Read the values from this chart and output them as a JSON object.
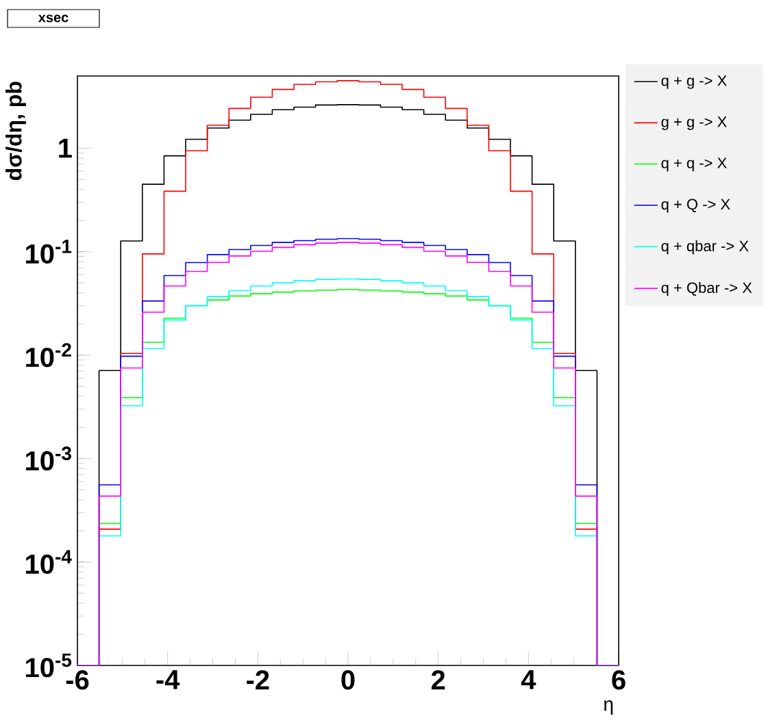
{
  "chart_data": {
    "type": "histogram",
    "title": "xsec",
    "xlabel": "η",
    "ylabel": "dσ/dη, pb",
    "bins": [
      -6,
      -5.52,
      -5.04,
      -4.56,
      -4.08,
      -3.6,
      -3.12,
      -2.64,
      -2.16,
      -1.68,
      -1.2,
      -0.72,
      -0.24,
      0.24,
      0.72,
      1.2,
      1.68,
      2.16,
      2.64,
      3.12,
      3.6,
      4.08,
      4.56,
      5.04,
      5.52,
      6
    ],
    "series": [
      {
        "name": "q + g -> X",
        "color": "#000000",
        "values": [
          null,
          0.0071,
          0.127,
          0.449,
          0.845,
          1.22,
          1.57,
          1.87,
          2.13,
          2.36,
          2.5,
          2.62,
          2.64,
          2.62,
          2.5,
          2.36,
          2.13,
          1.87,
          1.57,
          1.22,
          0.845,
          0.449,
          0.127,
          0.0071,
          null
        ]
      },
      {
        "name": "g + g -> X",
        "color": "#ff0000",
        "values": [
          null,
          0.000208,
          0.0104,
          0.0953,
          0.384,
          0.946,
          1.67,
          2.43,
          3.12,
          3.71,
          4.15,
          4.39,
          4.5,
          4.39,
          4.15,
          3.71,
          3.12,
          2.43,
          1.67,
          0.946,
          0.384,
          0.0953,
          0.0104,
          0.000208,
          null
        ]
      },
      {
        "name": "q + q -> X",
        "color": "#00ff00",
        "values": [
          null,
          0.000236,
          0.00389,
          0.0133,
          0.0228,
          0.0301,
          0.0342,
          0.0373,
          0.0392,
          0.0407,
          0.0417,
          0.0425,
          0.0432,
          0.0425,
          0.0417,
          0.0407,
          0.0392,
          0.0373,
          0.0342,
          0.0301,
          0.0228,
          0.0133,
          0.00389,
          0.000236,
          null
        ]
      },
      {
        "name": "q + Q -> X",
        "color": "#0000ff",
        "values": [
          null,
          0.000557,
          0.00975,
          0.0334,
          0.0588,
          0.0786,
          0.0938,
          0.105,
          0.115,
          0.123,
          0.128,
          0.132,
          0.134,
          0.132,
          0.128,
          0.123,
          0.115,
          0.105,
          0.0938,
          0.0786,
          0.0588,
          0.0334,
          0.00975,
          0.000557,
          null
        ]
      },
      {
        "name": "q + qbar -> X",
        "color": "#00ffff",
        "values": [
          null,
          0.000179,
          0.00324,
          0.0116,
          0.0219,
          0.03,
          0.0369,
          0.0421,
          0.0466,
          0.05,
          0.0524,
          0.054,
          0.0545,
          0.054,
          0.0524,
          0.05,
          0.0466,
          0.0421,
          0.0369,
          0.03,
          0.0219,
          0.0116,
          0.00324,
          0.000179,
          null
        ]
      },
      {
        "name": "q + Qbar -> X",
        "color": "#ff00ff",
        "values": [
          null,
          0.000434,
          0.00752,
          0.026,
          0.0466,
          0.0645,
          0.0789,
          0.091,
          0.101,
          0.11,
          0.117,
          0.121,
          0.123,
          0.121,
          0.117,
          0.11,
          0.101,
          0.091,
          0.0789,
          0.0645,
          0.0466,
          0.026,
          0.00752,
          0.000434,
          null
        ]
      }
    ],
    "xlim": [
      -6,
      6
    ],
    "ylim": [
      1e-05,
      5
    ],
    "xticks": [
      -6,
      -4,
      -2,
      0,
      2,
      4,
      6
    ],
    "yticks": [
      {
        "value": 1e-05,
        "label": "10$^{-5}$"
      },
      {
        "value": 0.0001,
        "label": "10$^{-4}$"
      },
      {
        "value": 0.001,
        "label": "10$^{-3}$"
      },
      {
        "value": 0.01,
        "label": "10$^{-2}$"
      },
      {
        "value": 0.1,
        "label": "10$^{-1}$"
      },
      1
    ],
    "log": "y",
    "grid": false,
    "legend": "top right"
  }
}
